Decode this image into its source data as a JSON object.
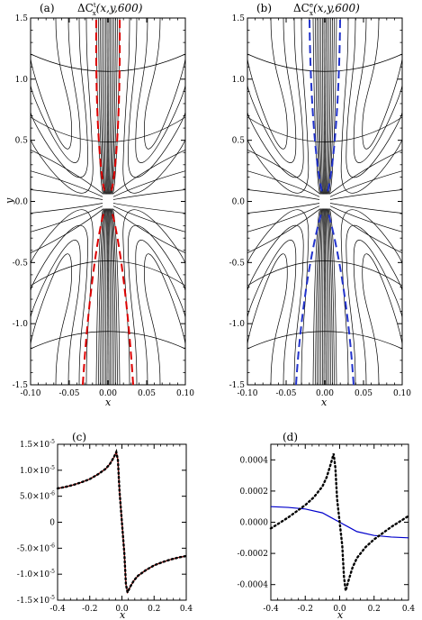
{
  "chart_data": [
    {
      "panel": "(a)",
      "type": "contour",
      "title_prefix": "ΔC",
      "title_sup": "t",
      "title_sub": "x",
      "title_args": "(x,y,600)",
      "xlabel": "x",
      "ylabel": "y",
      "xlim": [
        -0.1,
        0.1
      ],
      "ylim": [
        -1.5,
        1.5
      ],
      "xticks": [
        "-0.10",
        "-0.05",
        "0.00",
        "0.05",
        "0.10"
      ],
      "yticks": [
        "1.5",
        "1.0",
        "0.5",
        "0.0",
        "-0.5",
        "-1.0",
        "-1.5"
      ],
      "overlay_color": "#dd0000",
      "overlay_description": "dashed zero-contour lines near x=±0.03"
    },
    {
      "panel": "(b)",
      "type": "contour",
      "title_prefix": "ΔC",
      "title_sup": "e",
      "title_sub": "x",
      "title_args": "(x,y,600)",
      "xlabel": "x",
      "ylabel": "",
      "xlim": [
        -0.1,
        0.1
      ],
      "ylim": [
        -1.5,
        1.5
      ],
      "xticks": [
        "-0.10",
        "-0.05",
        "0.00",
        "0.05",
        "0.10"
      ],
      "yticks": [
        "1.5",
        "1.0",
        "0.5",
        "0.0",
        "-0.5",
        "-1.0",
        "-1.5"
      ],
      "overlay_color": "#2233cc"
    },
    {
      "panel": "(c)",
      "type": "line",
      "xlabel": "x",
      "xlim": [
        -0.4,
        0.4
      ],
      "ylim": [
        -1.5e-05,
        1.5e-05
      ],
      "xticks": [
        "-0.4",
        "-0.2",
        "0.0",
        "0.2",
        "0.4"
      ],
      "yticks": [
        {
          "m": "1.5×10",
          "e": "-5",
          "v": 1.5e-05
        },
        {
          "m": "1.0×10",
          "e": "-5",
          "v": 1e-05
        },
        {
          "m": "5.0×10",
          "e": "-6",
          "v": 5e-06
        },
        {
          "m": "0",
          "e": "",
          "v": 0
        },
        {
          "m": "-5.0×10",
          "e": "-6",
          "v": -5e-06
        },
        {
          "m": "-1.0×10",
          "e": "-5",
          "v": -1e-05
        },
        {
          "m": "-1.5×10",
          "e": "-5",
          "v": -1.5e-05
        }
      ],
      "series": [
        {
          "color": "#cc0000",
          "style": "solid",
          "x": [
            -0.4,
            -0.35,
            -0.3,
            -0.25,
            -0.2,
            -0.15,
            -0.1,
            -0.075,
            -0.05,
            -0.035,
            -0.025,
            -0.015,
            0.0,
            0.015,
            0.025,
            0.035,
            0.05,
            0.075,
            0.1,
            0.15,
            0.2,
            0.25,
            0.3,
            0.35,
            0.4
          ],
          "y": [
            6.5e-06,
            6.8e-06,
            7.2e-06,
            7.7e-06,
            8.3e-06,
            9.2e-06,
            1.03e-05,
            1.12e-05,
            1.25e-05,
            1.35e-05,
            1.2e-05,
            6e-06,
            0,
            -6e-06,
            -1.2e-05,
            -1.35e-05,
            -1.25e-05,
            -1.12e-05,
            -1.03e-05,
            -9.2e-06,
            -8.3e-06,
            -7.7e-06,
            -7.2e-06,
            -6.8e-06,
            -6.5e-06
          ]
        },
        {
          "color": "#000000",
          "style": "dotted",
          "x": [
            -0.4,
            -0.35,
            -0.3,
            -0.25,
            -0.2,
            -0.15,
            -0.1,
            -0.075,
            -0.05,
            -0.035,
            -0.025,
            -0.015,
            0.0,
            0.015,
            0.025,
            0.035,
            0.05,
            0.075,
            0.1,
            0.15,
            0.2,
            0.25,
            0.3,
            0.35,
            0.4
          ],
          "y": [
            6.5e-06,
            6.8e-06,
            7.2e-06,
            7.7e-06,
            8.3e-06,
            9.2e-06,
            1.03e-05,
            1.12e-05,
            1.25e-05,
            1.35e-05,
            1.2e-05,
            6e-06,
            0,
            -6e-06,
            -1.2e-05,
            -1.35e-05,
            -1.25e-05,
            -1.12e-05,
            -1.03e-05,
            -9.2e-06,
            -8.3e-06,
            -7.7e-06,
            -7.2e-06,
            -6.8e-06,
            -6.5e-06
          ]
        }
      ]
    },
    {
      "panel": "(d)",
      "type": "line",
      "xlabel": "x",
      "xlim": [
        -0.4,
        0.4
      ],
      "ylim": [
        -0.0005,
        0.0005
      ],
      "xticks": [
        "-0.4",
        "-0.2",
        "0.0",
        "0.2",
        "0.4"
      ],
      "yticks": [
        {
          "m": "0.0004",
          "v": 0.0004
        },
        {
          "m": "0.0002",
          "v": 0.0002
        },
        {
          "m": "0.0000",
          "v": 0
        },
        {
          "m": "-0.0002",
          "v": -0.0002
        },
        {
          "m": "-0.0004",
          "v": -0.0004
        }
      ],
      "series": [
        {
          "color": "#0000cc",
          "style": "solid",
          "x": [
            -0.4,
            -0.3,
            -0.2,
            -0.1,
            -0.05,
            0.0,
            0.05,
            0.1,
            0.2,
            0.3,
            0.4
          ],
          "y": [
            0.0001,
            9.5e-05,
            8.5e-05,
            6e-05,
            3e-05,
            0,
            -3e-05,
            -6e-05,
            -8.5e-05,
            -9.5e-05,
            -0.0001
          ]
        },
        {
          "color": "#000000",
          "style": "dotted",
          "x": [
            -0.4,
            -0.3,
            -0.2,
            -0.15,
            -0.1,
            -0.075,
            -0.05,
            -0.035,
            -0.025,
            -0.015,
            0.0,
            0.015,
            0.025,
            0.035,
            0.05,
            0.075,
            0.1,
            0.15,
            0.2,
            0.3,
            0.4
          ],
          "y": [
            -4e-05,
            3e-05,
            0.00011,
            0.00016,
            0.00023,
            0.00029,
            0.00038,
            0.00044,
            0.00035,
            0.00015,
            0,
            -0.00015,
            -0.00035,
            -0.00044,
            -0.00038,
            -0.00029,
            -0.00023,
            -0.00016,
            -0.00011,
            -3e-05,
            4e-05
          ]
        }
      ]
    }
  ]
}
